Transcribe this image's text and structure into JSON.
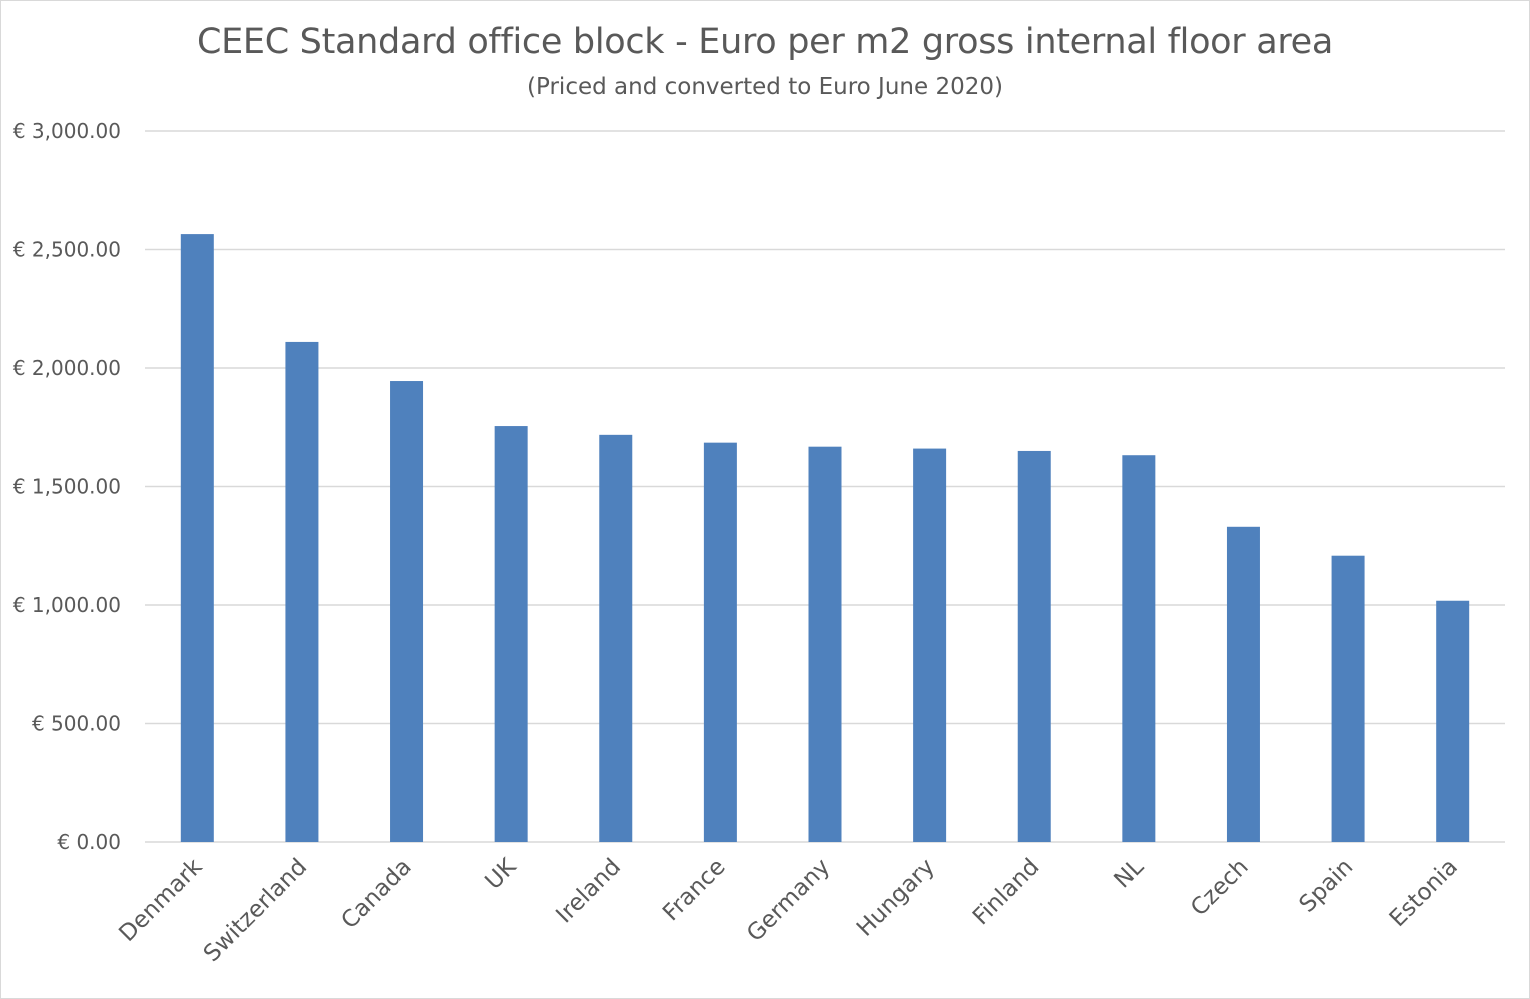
{
  "chart_data": {
    "type": "bar",
    "title": "CEEC Standard office block - Euro per m2 gross internal floor area",
    "subtitle": "(Priced and converted to Euro June 2020)",
    "xlabel": "",
    "ylabel": "",
    "categories": [
      "Denmark",
      "Switzerland",
      "Canada",
      "UK",
      "Ireland",
      "France",
      "Germany",
      "Hungary",
      "Finland",
      "NL",
      "Czech",
      "Spain",
      "Estonia"
    ],
    "values": [
      2565,
      2110,
      1945,
      1755,
      1718,
      1685,
      1668,
      1660,
      1650,
      1632,
      1330,
      1208,
      1018
    ],
    "ylim": [
      0,
      3000
    ],
    "yticks": [
      0,
      500,
      1000,
      1500,
      2000,
      2500,
      3000
    ],
    "ytick_labels": [
      "€ 0.00",
      "€ 500.00",
      "€ 1,000.00",
      "€ 1,500.00",
      "€ 2,000.00",
      "€ 2,500.00",
      "€ 3,000.00"
    ],
    "grid": true,
    "legend": "none",
    "bar_color": "#4f81bd",
    "grid_color": "#d9d9d9"
  }
}
